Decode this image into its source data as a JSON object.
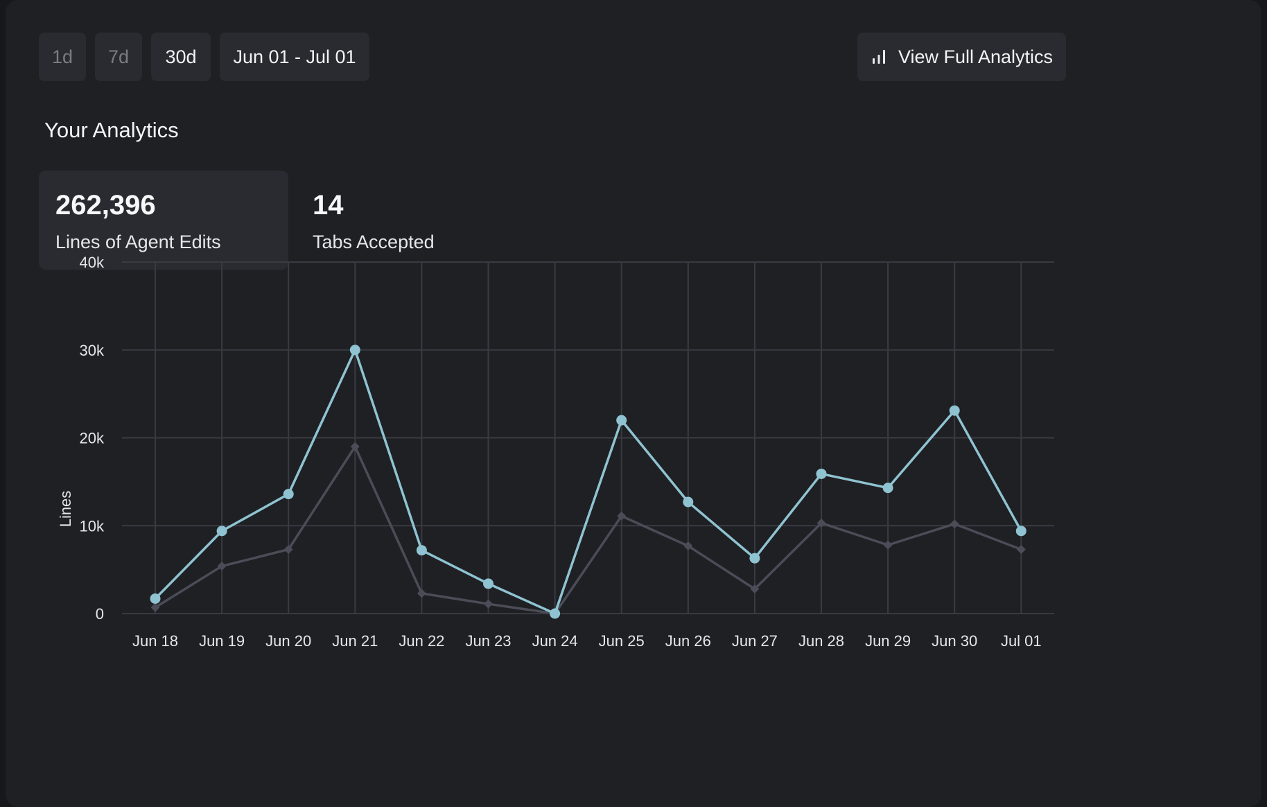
{
  "filters": {
    "range_1d": "1d",
    "range_7d": "7d",
    "range_30d": "30d",
    "date_range": "Jun 01 - Jul 01"
  },
  "actions": {
    "view_full_analytics": "View Full Analytics"
  },
  "section_title": "Your Analytics",
  "stats": [
    {
      "value": "262,396",
      "label": "Lines of Agent Edits"
    },
    {
      "value": "14",
      "label": "Tabs Accepted"
    }
  ],
  "colors": {
    "primary_series": "#8fc3d1",
    "secondary_series": "#4a4d57"
  },
  "chart_data": {
    "type": "line",
    "ylabel": "Lines",
    "xlabel": "",
    "ylim": [
      0,
      40000
    ],
    "yticks": [
      0,
      10000,
      20000,
      30000,
      40000
    ],
    "ytick_labels": [
      "0",
      "10k",
      "20k",
      "30k",
      "40k"
    ],
    "categories": [
      "Jun 18",
      "Jun 19",
      "Jun 20",
      "Jun 21",
      "Jun 22",
      "Jun 23",
      "Jun 24",
      "Jun 25",
      "Jun 26",
      "Jun 27",
      "Jun 28",
      "Jun 29",
      "Jun 30",
      "Jul 01"
    ],
    "grid": true,
    "series": [
      {
        "values": [
          1700,
          9400,
          13600,
          30000,
          7200,
          3400,
          0,
          22000,
          12700,
          6300,
          15900,
          14300,
          23100,
          9400
        ]
      },
      {
        "values": [
          700,
          5400,
          7300,
          19000,
          2300,
          1100,
          0,
          11100,
          7700,
          2800,
          10300,
          7800,
          10200,
          7300
        ]
      }
    ]
  }
}
